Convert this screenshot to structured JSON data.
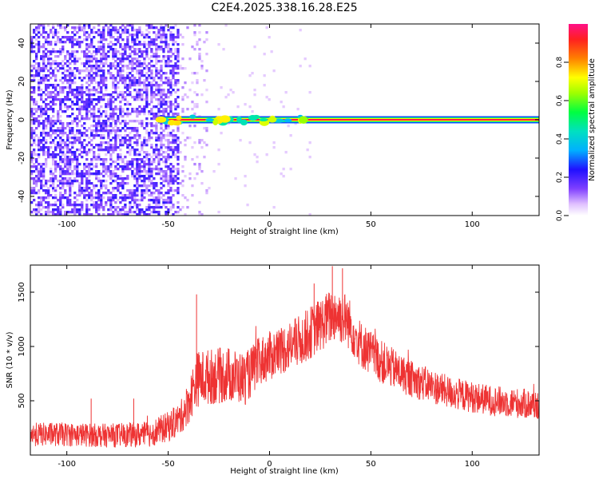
{
  "title": "C2E4.2025.338.16.28.E25",
  "chart_data": [
    {
      "type": "heatmap",
      "xlabel": "Height of straight line (km)",
      "ylabel": "Frequency (Hz)",
      "xlim": [
        -118,
        133
      ],
      "ylim": [
        -50,
        50
      ],
      "xticks": [
        -100,
        -50,
        0,
        50,
        100
      ],
      "yticks": [
        -40,
        -20,
        0,
        20,
        40
      ],
      "colorbar": {
        "label": "Normalized spectral amplitude",
        "range": [
          0,
          1
        ],
        "ticks": [
          0,
          0.2,
          0.4,
          0.6,
          0.8
        ]
      },
      "features": {
        "noise_region_x": [
          -118,
          -45
        ],
        "noise_amplitude_typical": 0.1,
        "carrier_start_x": -55,
        "carrier_frequency_hz": 0,
        "carrier_amplitude_after_x_-35": 0.95
      }
    },
    {
      "type": "line",
      "xlabel": "Height of straight line (km)",
      "ylabel": "SNR (10 * v/v)",
      "xlim": [
        -118,
        133
      ],
      "ylim": [
        0,
        1750
      ],
      "xticks": [
        -100,
        -50,
        0,
        50,
        100
      ],
      "yticks": [
        500,
        1000,
        1500
      ],
      "color": "#ee3333",
      "envelope_points": [
        {
          "x": -118,
          "mean": 190,
          "spread": 110
        },
        {
          "x": -100,
          "mean": 190,
          "spread": 110
        },
        {
          "x": -80,
          "mean": 180,
          "spread": 110
        },
        {
          "x": -60,
          "mean": 190,
          "spread": 120
        },
        {
          "x": -50,
          "mean": 260,
          "spread": 140
        },
        {
          "x": -44,
          "mean": 340,
          "spread": 150
        },
        {
          "x": -40,
          "mean": 480,
          "spread": 200
        },
        {
          "x": -36,
          "mean": 700,
          "spread": 260
        },
        {
          "x": -30,
          "mean": 720,
          "spread": 260
        },
        {
          "x": -20,
          "mean": 740,
          "spread": 260
        },
        {
          "x": -12,
          "mean": 700,
          "spread": 240
        },
        {
          "x": -5,
          "mean": 860,
          "spread": 230
        },
        {
          "x": 5,
          "mean": 960,
          "spread": 230
        },
        {
          "x": 15,
          "mean": 1050,
          "spread": 240
        },
        {
          "x": 25,
          "mean": 1200,
          "spread": 250
        },
        {
          "x": 32,
          "mean": 1300,
          "spread": 260
        },
        {
          "x": 38,
          "mean": 1250,
          "spread": 250
        },
        {
          "x": 45,
          "mean": 1020,
          "spread": 220
        },
        {
          "x": 55,
          "mean": 860,
          "spread": 200
        },
        {
          "x": 70,
          "mean": 700,
          "spread": 170
        },
        {
          "x": 90,
          "mean": 570,
          "spread": 150
        },
        {
          "x": 110,
          "mean": 500,
          "spread": 140
        },
        {
          "x": 133,
          "mean": 460,
          "spread": 140
        }
      ],
      "spikes": [
        {
          "x": -36,
          "y": 1480
        },
        {
          "x": 22,
          "y": 1580
        },
        {
          "x": 31,
          "y": 1740
        },
        {
          "x": 36,
          "y": 1720
        },
        {
          "x": -88,
          "y": 520
        },
        {
          "x": -67,
          "y": 520
        }
      ]
    }
  ]
}
